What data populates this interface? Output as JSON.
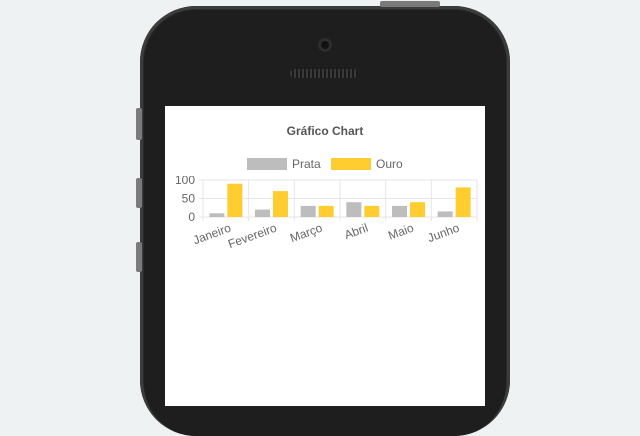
{
  "chart_data": {
    "type": "bar",
    "title": "Gráfico Chart",
    "categories": [
      "Janeiro",
      "Fevereiro",
      "Março",
      "Abril",
      "Maio",
      "Junho"
    ],
    "series": [
      {
        "name": "Prata",
        "color": "#bdbdbd",
        "values": [
          10,
          20,
          30,
          40,
          30,
          15
        ]
      },
      {
        "name": "Ouro",
        "color": "#ffcd2f",
        "values": [
          90,
          70,
          30,
          30,
          40,
          80
        ]
      }
    ],
    "ylim": [
      0,
      100
    ],
    "yticks": [
      0,
      50,
      100
    ],
    "legend": "top",
    "grid": true
  }
}
